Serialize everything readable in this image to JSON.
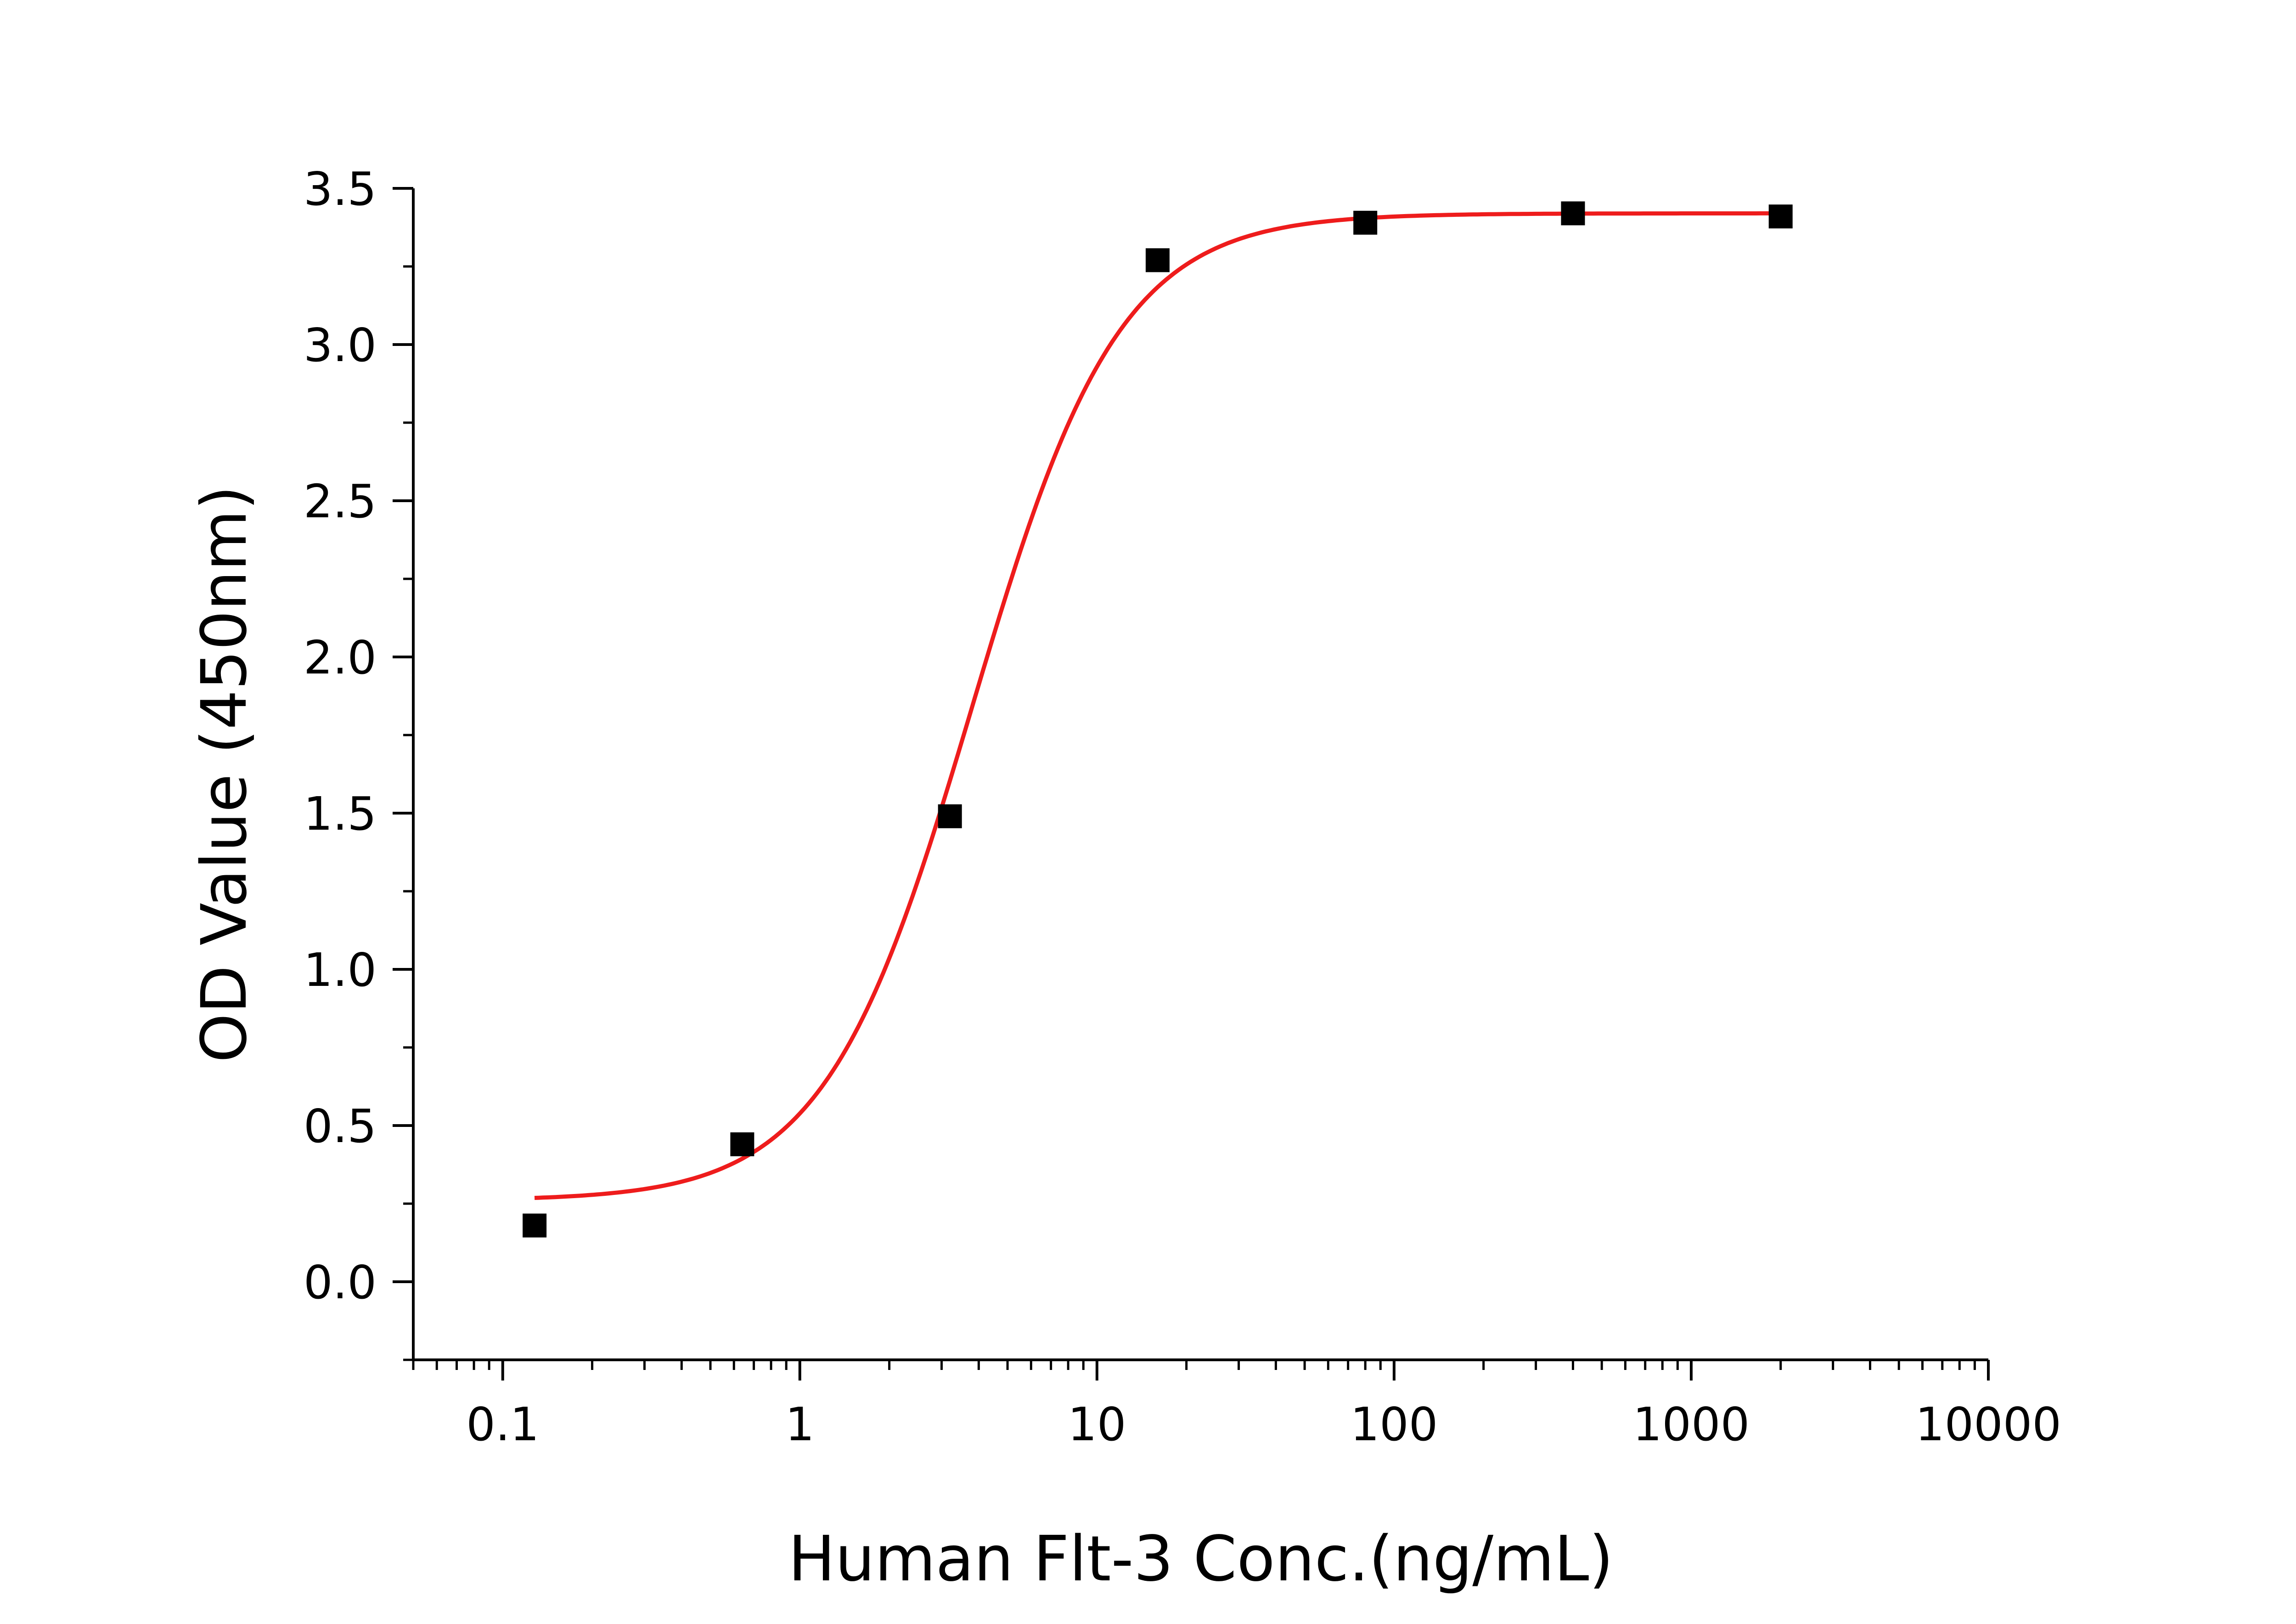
{
  "chart_data": {
    "type": "scatter",
    "title": "",
    "xlabel": "Human Flt-3 Conc.(ng/mL)",
    "ylabel": "OD Value (450nm)",
    "x_scale": "log",
    "xlim": [
      0.05,
      10000
    ],
    "ylim": [
      -0.25,
      3.5
    ],
    "x_ticks": [
      0.1,
      1,
      10,
      100,
      1000,
      10000
    ],
    "x_tick_labels": [
      "0.1",
      "1",
      "10",
      "100",
      "1000",
      "10000"
    ],
    "y_ticks": [
      0.0,
      0.5,
      1.0,
      1.5,
      2.0,
      2.5,
      3.0,
      3.5
    ],
    "y_tick_labels": [
      "0.0",
      "0.5",
      "1.0",
      "1.5",
      "2.0",
      "2.5",
      "3.0",
      "3.5"
    ],
    "grid": false,
    "legend": "none",
    "series": [
      {
        "kind": "points",
        "marker": "square",
        "color": "#000000",
        "x": [
          0.128,
          0.64,
          3.2,
          16,
          80,
          400,
          2000
        ],
        "y": [
          0.18,
          0.44,
          1.49,
          3.27,
          3.39,
          3.42,
          3.41
        ]
      },
      {
        "kind": "fit-line",
        "color": "#ee1c1c",
        "x_range": [
          0.128,
          2000
        ],
        "params": {
          "bottom": 0.26,
          "top": 3.42,
          "ec50": 3.8,
          "hill": 1.75
        }
      }
    ]
  }
}
